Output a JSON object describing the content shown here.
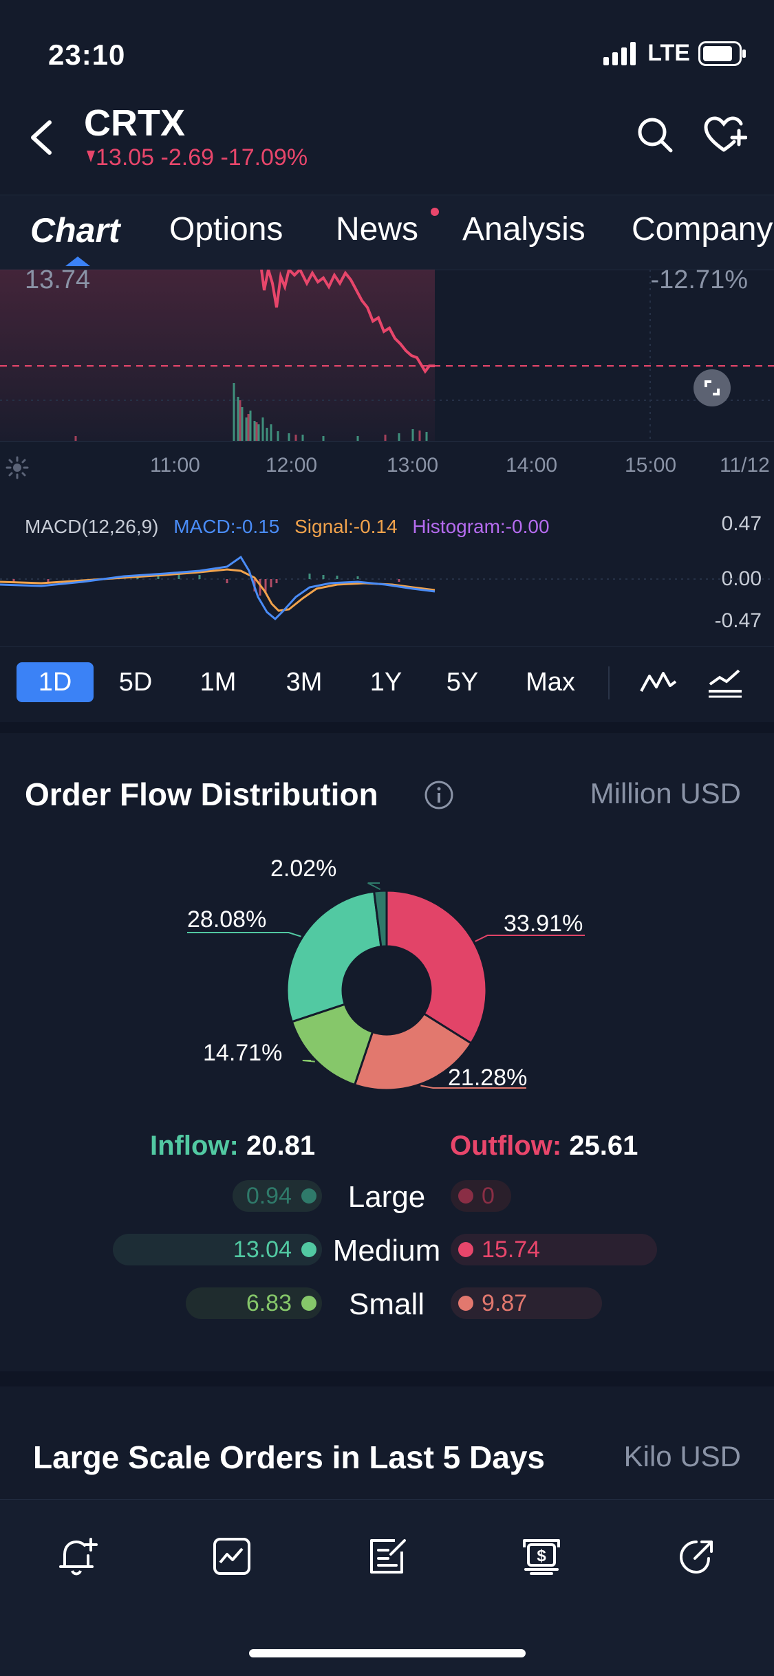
{
  "status": {
    "time": "23:10",
    "network": "LTE"
  },
  "header": {
    "ticker": "CRTX",
    "quote": "13.05 -2.69 -17.09%"
  },
  "tabs": [
    {
      "label": "Chart"
    },
    {
      "label": "Options"
    },
    {
      "label": "News"
    },
    {
      "label": "Analysis"
    },
    {
      "label": "Company"
    }
  ],
  "chart": {
    "high_price": "13.74",
    "change_pct": "-12.71%",
    "time_labels": [
      "11:00",
      "12:00",
      "13:00",
      "14:00",
      "15:00",
      "11/12"
    ]
  },
  "macd": {
    "title": "MACD(12,26,9)",
    "macd": "MACD:-0.15",
    "signal": "Signal:-0.14",
    "histogram": "Histogram:-0.00",
    "axis": [
      "0.47",
      "0.00",
      "-0.47"
    ],
    "colors": {
      "macd": "#4a8cf7",
      "signal": "#f2a34c",
      "histogram": "#b66cf0"
    }
  },
  "periods": [
    {
      "label": "1D",
      "active": true
    },
    {
      "label": "5D"
    },
    {
      "label": "1M"
    },
    {
      "label": "3M"
    },
    {
      "label": "1Y"
    },
    {
      "label": "5Y"
    },
    {
      "label": "Max"
    }
  ],
  "order_flow": {
    "title": "Order Flow Distribution",
    "unit": "Million USD",
    "inflow_label": "Inflow:",
    "inflow_value": "20.81",
    "outflow_label": "Outflow:",
    "outflow_value": "25.61",
    "rows": [
      {
        "label": "Large",
        "in": "0.94",
        "out": "0"
      },
      {
        "label": "Medium",
        "in": "13.04",
        "out": "15.74"
      },
      {
        "label": "Small",
        "in": "6.83",
        "out": "9.87"
      }
    ],
    "colors": {
      "inflow": "#52c9a2",
      "outflow": "#e8466b"
    }
  },
  "chart_data": {
    "type": "pie",
    "labels": [
      "33.91%",
      "21.28%",
      "14.71%",
      "28.08%",
      "2.02%"
    ],
    "values": [
      33.91,
      21.28,
      14.71,
      28.08,
      2.02
    ],
    "colors": [
      "#e24468",
      "#e2786e",
      "#86c76a",
      "#52c9a2",
      "#2f7a6a"
    ]
  },
  "large_orders": {
    "title": "Large Scale Orders in Last 5 Days",
    "unit": "Kilo USD"
  },
  "bottom_bar": [
    "alert-add-icon",
    "trend-chart-icon",
    "edit-note-icon",
    "trade-dollar-icon",
    "share-icon"
  ]
}
